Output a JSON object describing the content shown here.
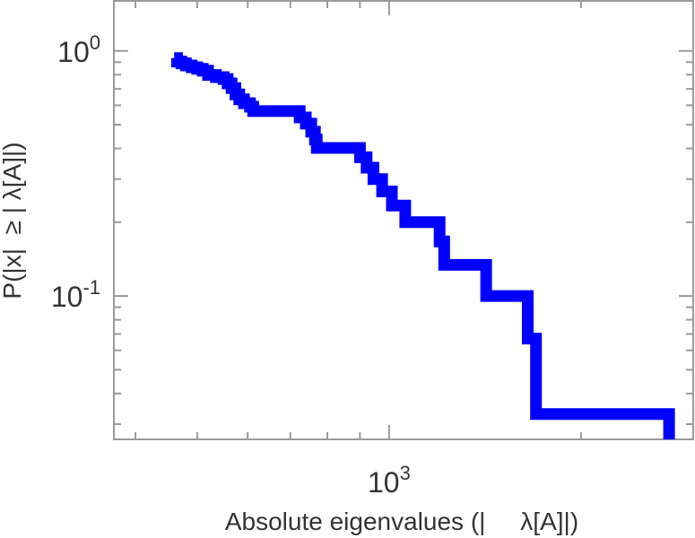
{
  "chart_data": {
    "type": "line",
    "title": "",
    "xlabel": "Absolute eigenvalues (|     λ[A]|)",
    "ylabel": "P(|x|  ≥ | λ[A]|)",
    "xscale": "log",
    "yscale": "log",
    "xlim": [
      370,
      3000
    ],
    "ylim": [
      0.026,
      1.6
    ],
    "x_ticks": [
      {
        "value": 1000,
        "base": "10",
        "exp": "3"
      }
    ],
    "y_ticks": [
      {
        "value": 1,
        "base": "10",
        "exp": "0"
      },
      {
        "value": 0.1,
        "base": "10",
        "exp": "-1"
      }
    ],
    "grid": false,
    "line_color": "#0000ff",
    "series": [
      {
        "step": "post",
        "points": [
          [
            460,
            0.935
          ],
          [
            465,
            0.905
          ],
          [
            472,
            0.89
          ],
          [
            480,
            0.872
          ],
          [
            490,
            0.858
          ],
          [
            500,
            0.845
          ],
          [
            510,
            0.83
          ],
          [
            520,
            0.798
          ],
          [
            535,
            0.782
          ],
          [
            550,
            0.768
          ],
          [
            558,
            0.737
          ],
          [
            566,
            0.705
          ],
          [
            574,
            0.665
          ],
          [
            582,
            0.635
          ],
          [
            592,
            0.612
          ],
          [
            605,
            0.592
          ],
          [
            612,
            0.568
          ],
          [
            680,
            0.568
          ],
          [
            724,
            0.535
          ],
          [
            740,
            0.505
          ],
          [
            755,
            0.468
          ],
          [
            765,
            0.435
          ],
          [
            770,
            0.402
          ],
          [
            880,
            0.402
          ],
          [
            900,
            0.368
          ],
          [
            922,
            0.334
          ],
          [
            945,
            0.3
          ],
          [
            975,
            0.267
          ],
          [
            1010,
            0.234
          ],
          [
            1060,
            0.2
          ],
          [
            1150,
            0.2
          ],
          [
            1200,
            0.167
          ],
          [
            1220,
            0.134
          ],
          [
            1400,
            0.134
          ],
          [
            1420,
            0.1
          ],
          [
            1600,
            0.1
          ],
          [
            1650,
            0.067
          ],
          [
            1700,
            0.033
          ],
          [
            2750,
            0.033
          ]
        ],
        "end_drop_to_y": 0.026
      }
    ]
  }
}
